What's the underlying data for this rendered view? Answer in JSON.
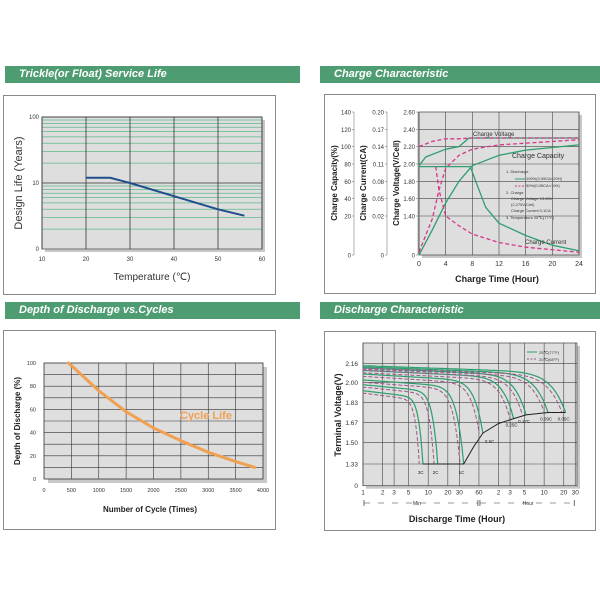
{
  "panels": {
    "service_life": {
      "title": "Trickle(or Float) Service Life"
    },
    "charge": {
      "title": "Charge Characteristic"
    },
    "dod": {
      "title": "Depth of Discharge vs.Cycles"
    },
    "discharge": {
      "title": "Discharge Characteristic"
    }
  },
  "colors": {
    "header": "#4e9d72",
    "plot_bg": "#dedede",
    "green": "#2e9e6e",
    "pink": "#d4388a",
    "blue": "#1f4e8c",
    "orange": "#f0a050"
  },
  "chart_data": [
    {
      "type": "line",
      "xlabel": "Temperature (℃)",
      "ylabel": "Design Life (Years)",
      "xlim": [
        10,
        60
      ],
      "x_ticks": [
        "10",
        "20",
        "30",
        "40",
        "50",
        "60"
      ],
      "y_scale": "log",
      "y_ticks": [
        "0",
        "10",
        "100"
      ],
      "grid": true,
      "series": [
        {
          "x": [
            20,
            25.5,
            30,
            40,
            50,
            56
          ],
          "y": [
            12,
            12,
            10,
            6.3,
            4,
            3.2
          ]
        }
      ]
    },
    {
      "type": "line",
      "xlabel": "Charge Time (Hour)",
      "ylabel_voltage": "Charge Voltage(V/Cell)",
      "ylabel_current": "Charge Current(CA)",
      "ylabel_capacity": "Charge Capacity(%)",
      "x_ticks": [
        "0",
        "4",
        "8",
        "12",
        "16",
        "20",
        "24"
      ],
      "xlim": [
        0,
        24
      ],
      "voltage_ticks": [
        "0",
        "1.40",
        "1.60",
        "1.80",
        "2.00",
        "2.20",
        "2.40",
        "2.60"
      ],
      "current_ticks": [
        "0",
        "0.02",
        "0.05",
        "0.08",
        "0.11",
        "0.14",
        "0.17",
        "0.20"
      ],
      "capacity_ticks": [
        "0",
        "20",
        "40",
        "60",
        "80",
        "100",
        "120",
        "140"
      ],
      "grid": true,
      "annotations": {
        "voltage": "Charge Voltage",
        "capacity": "Charge Capacity",
        "current": "Charge Current"
      },
      "legend": {
        "l1": "1. Discharge",
        "l1a": "100%(0.05CA×20H)",
        "l1b": "50%(0.05CA×10H)",
        "l2": "2. Charge",
        "l2a": "Charge Voltage 13.65V",
        "l2b": "(2.275V/Cell)",
        "l2c": "Charge Current 0.1CA",
        "l3": "3. Temperature 25℃(77°F)"
      },
      "series": [
        {
          "curve": "voltage-100",
          "style": "solid",
          "x": [
            0,
            1,
            4,
            6,
            7.5,
            24
          ],
          "y": [
            1.98,
            2.08,
            2.17,
            2.2,
            2.3,
            2.3
          ]
        },
        {
          "curve": "voltage-50",
          "style": "dashed",
          "x": [
            0,
            2,
            4,
            6,
            8,
            24
          ],
          "y": [
            2.2,
            2.26,
            2.29,
            2.29,
            2.3,
            2.3
          ]
        },
        {
          "curve": "capacity-100",
          "style": "solid",
          "x": [
            0,
            2,
            4,
            6,
            8,
            12,
            16,
            24
          ],
          "y": [
            0,
            0.9,
            1.55,
            1.8,
            1.98,
            2.1,
            2.16,
            2.22
          ]
        },
        {
          "curve": "capacity-50",
          "style": "dashed",
          "x": [
            0,
            2,
            3,
            4,
            6,
            8,
            12,
            24
          ],
          "y": [
            0.1,
            1.3,
            1.7,
            1.95,
            2.1,
            2.17,
            2.22,
            2.28
          ]
        },
        {
          "curve": "current-100",
          "style": "solid",
          "x": [
            0,
            7.7,
            8.5,
            10,
            12,
            16,
            20,
            24
          ],
          "y": [
            1.97,
            1.97,
            1.8,
            1.5,
            1.14,
            0.7,
            0.35,
            0.15
          ]
        },
        {
          "curve": "current-50",
          "style": "dashed",
          "x": [
            2.5,
            3,
            4,
            6,
            8,
            12,
            16,
            24
          ],
          "y": [
            1.97,
            1.7,
            1.4,
            1.05,
            0.75,
            0.45,
            0.28,
            0.1
          ]
        }
      ]
    },
    {
      "type": "line",
      "xlabel": "Number of Cycle (Times)",
      "ylabel": "Depth of Discharge (%)",
      "xlim": [
        0,
        4000
      ],
      "ylim": [
        0,
        100
      ],
      "x_ticks": [
        "0",
        "500",
        "1000",
        "1500",
        "2000",
        "2500",
        "3000",
        "3500",
        "4000"
      ],
      "y_ticks": [
        "0",
        "20",
        "40",
        "60",
        "80",
        "100"
      ],
      "grid": true,
      "annotation": "Cycle Life",
      "series": [
        {
          "x": [
            450,
            1000,
            1500,
            2000,
            2500,
            3000,
            3500,
            3850
          ],
          "y": [
            100,
            76,
            58,
            44,
            33,
            23,
            15,
            10
          ]
        }
      ]
    },
    {
      "type": "line",
      "xlabel": "Discharge Time (Hour)",
      "ylabel": "Terminal Voltage(V)",
      "x_scale": "log",
      "x_ticks_min": [
        "1",
        "2",
        "3",
        "5",
        "10",
        "20",
        "30",
        "60"
      ],
      "x_ticks_hour": [
        "2",
        "3",
        "5",
        "10",
        "20",
        "30"
      ],
      "range_labels": {
        "min": "Min",
        "hour": "Hour"
      },
      "y_ticks": [
        "0",
        "1.33",
        "1.50",
        "1.67",
        "1.83",
        "2.00",
        "2.16"
      ],
      "grid": true,
      "legend": [
        {
          "name": "25℃(77°F)",
          "style": "solid"
        },
        {
          "name": "20℃(68°F)",
          "style": "dashed"
        }
      ],
      "series": [
        {
          "rate": "3C",
          "start_v": 1.93,
          "end_min": 8.3,
          "end_v": 1.33
        },
        {
          "rate": "2C",
          "start_v": 1.98,
          "end_min": 14,
          "end_v": 1.33
        },
        {
          "rate": "1C",
          "start_v": 2.02,
          "end_min": 35,
          "end_v": 1.33
        },
        {
          "rate": "0.6C",
          "start_v": 2.07,
          "end_min": 69,
          "end_v": 1.58
        },
        {
          "rate": "0.25C",
          "start_v": 2.1,
          "end_min": 204,
          "end_v": 1.7
        },
        {
          "rate": "0.17C",
          "start_v": 2.12,
          "end_min": 317,
          "end_v": 1.73
        },
        {
          "rate": "0.09C",
          "start_v": 2.13,
          "end_min": 690,
          "end_v": 1.75
        },
        {
          "rate": "0.05C",
          "start_v": 2.14,
          "end_min": 1280,
          "end_v": 1.75
        }
      ],
      "cutoff_curve": {
        "x_min": [
          8.3,
          35,
          50,
          69,
          120,
          204,
          317,
          690,
          1280
        ],
        "y": [
          1.33,
          1.33,
          1.47,
          1.58,
          1.66,
          1.7,
          1.73,
          1.75,
          1.75
        ]
      }
    }
  ]
}
